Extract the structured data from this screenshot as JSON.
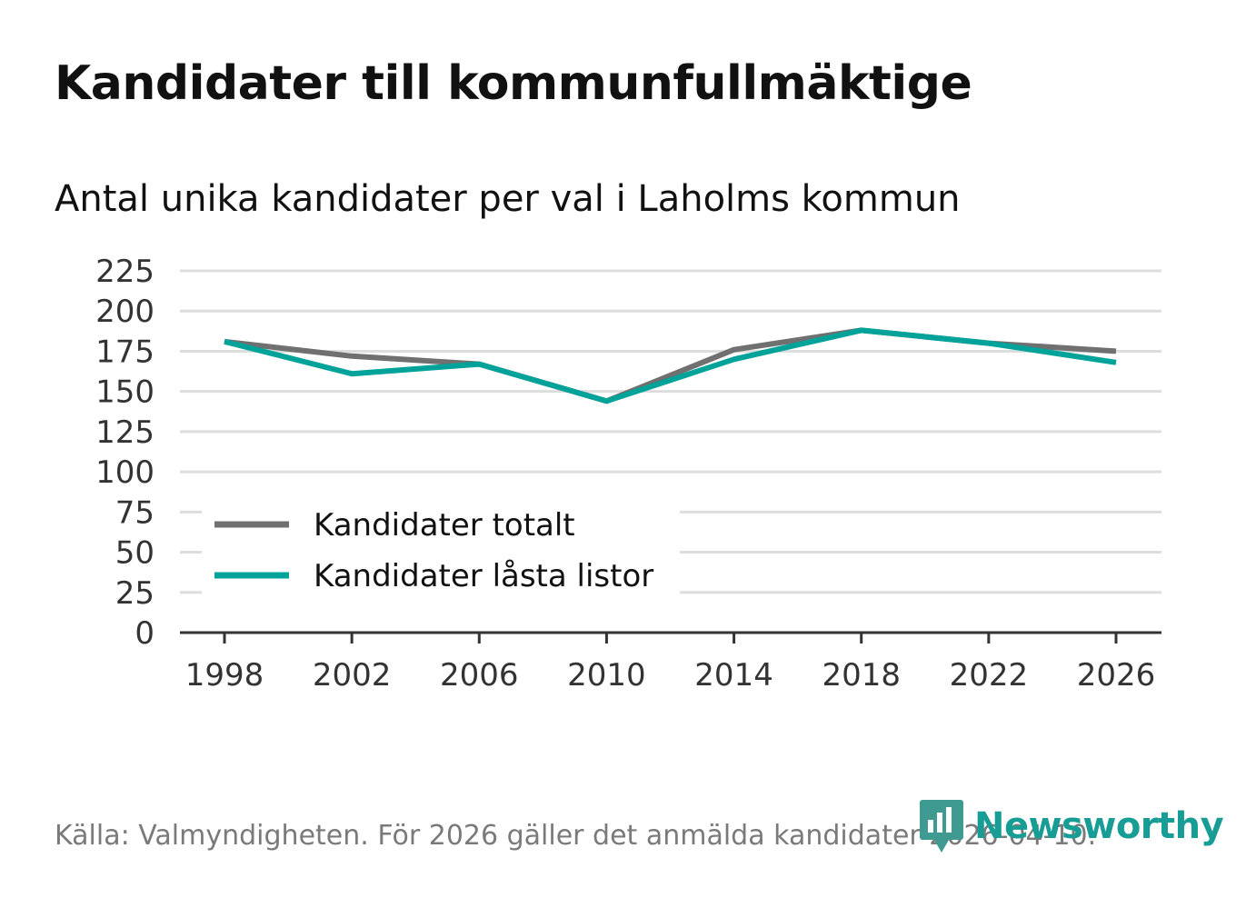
{
  "header": {
    "title": "Kandidater till kommunfullmäktige",
    "subtitle": "Antal unika kandidater per val i Laholms kommun"
  },
  "footer": {
    "source": "Källa: Valmyndigheten. För 2026 gäller det anmälda kandidater 2026-04-10.",
    "brand": "Newsworthy"
  },
  "colors": {
    "total": "#707070",
    "locked": "#00a39a",
    "grid": "#dddddd",
    "axis": "#333333",
    "brand": "#179d95"
  },
  "chart_data": {
    "type": "line",
    "title": "Kandidater till kommunfullmäktige",
    "subtitle": "Antal unika kandidater per val i Laholms kommun",
    "xlabel": "",
    "ylabel": "",
    "x": [
      1998,
      2002,
      2006,
      2010,
      2014,
      2018,
      2022,
      2026
    ],
    "ylim": [
      0,
      225
    ],
    "yticks": [
      0,
      25,
      50,
      75,
      100,
      125,
      150,
      175,
      200,
      225
    ],
    "grid": true,
    "legend_position": "bottom-left",
    "series": [
      {
        "name": "Kandidater totalt",
        "color": "#707070",
        "values": [
          181,
          172,
          167,
          144,
          176,
          188,
          180,
          175
        ]
      },
      {
        "name": "Kandidater låsta listor",
        "color": "#00a39a",
        "values": [
          181,
          161,
          167,
          144,
          170,
          188,
          180,
          168
        ]
      }
    ]
  }
}
